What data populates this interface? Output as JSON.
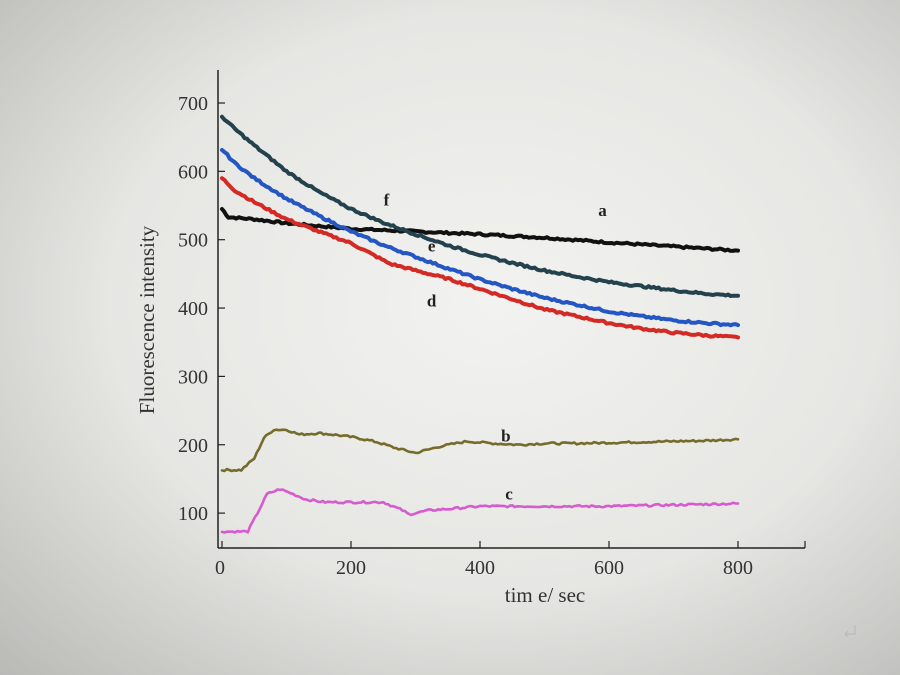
{
  "chart_data": {
    "type": "line",
    "xlabel": "tim e/ sec",
    "ylabel": "Fluorescence intensity",
    "xlim": [
      0,
      900
    ],
    "ylim": [
      50,
      750
    ],
    "x_ticks": [
      0,
      200,
      400,
      600,
      800
    ],
    "y_ticks": [
      100,
      200,
      300,
      400,
      500,
      600,
      700
    ],
    "grid": false,
    "series": [
      {
        "name": "a",
        "color": "#111111",
        "x": [
          0,
          10,
          50,
          100,
          150,
          200,
          300,
          400,
          500,
          600,
          700,
          800
        ],
        "y": [
          545,
          533,
          530,
          524,
          520,
          516,
          512,
          508,
          503,
          496,
          490,
          484
        ]
      },
      {
        "name": "b",
        "color": "#756b2a",
        "x": [
          0,
          30,
          50,
          65,
          80,
          100,
          120,
          150,
          180,
          210,
          240,
          270,
          300,
          340,
          380,
          420,
          460,
          500,
          550,
          600,
          650,
          700,
          750,
          800
        ],
        "y": [
          163,
          163,
          180,
          210,
          222,
          222,
          215,
          217,
          214,
          210,
          204,
          195,
          188,
          198,
          205,
          202,
          200,
          202,
          202,
          203,
          204,
          205,
          206,
          208
        ]
      },
      {
        "name": "c",
        "color": "#d65ad0",
        "x": [
          0,
          40,
          55,
          70,
          90,
          110,
          130,
          160,
          200,
          250,
          280,
          290,
          300,
          320,
          350,
          400,
          450,
          500,
          550,
          600,
          650,
          700,
          750,
          800
        ],
        "y": [
          73,
          73,
          100,
          128,
          135,
          128,
          120,
          116,
          116,
          116,
          104,
          98,
          100,
          104,
          106,
          110,
          110,
          110,
          110,
          110,
          111,
          112,
          113,
          114
        ]
      },
      {
        "name": "d",
        "color": "#d42a25",
        "x": [
          0,
          20,
          50,
          100,
          150,
          200,
          220,
          240,
          260,
          300,
          350,
          400,
          450,
          500,
          550,
          600,
          650,
          700,
          750,
          800
        ],
        "y": [
          590,
          572,
          555,
          530,
          512,
          495,
          485,
          475,
          465,
          455,
          443,
          428,
          413,
          398,
          388,
          378,
          370,
          364,
          360,
          357
        ]
      },
      {
        "name": "e",
        "color": "#2457c4",
        "x": [
          0,
          20,
          50,
          100,
          150,
          200,
          250,
          300,
          350,
          400,
          450,
          500,
          550,
          600,
          650,
          700,
          750,
          800
        ],
        "y": [
          632,
          612,
          590,
          560,
          535,
          512,
          492,
          475,
          458,
          442,
          428,
          415,
          405,
          395,
          388,
          382,
          378,
          375
        ]
      },
      {
        "name": "f",
        "color": "#24424e",
        "x": [
          0,
          20,
          50,
          100,
          150,
          200,
          250,
          300,
          350,
          400,
          450,
          500,
          550,
          600,
          650,
          700,
          750,
          800
        ],
        "y": [
          680,
          662,
          638,
          600,
          570,
          545,
          525,
          508,
          492,
          478,
          466,
          455,
          446,
          438,
          432,
          426,
          421,
          418
        ]
      }
    ],
    "annotations": [
      {
        "text": "a",
        "x": 590,
        "y": 535
      },
      {
        "text": "b",
        "x": 440,
        "y": 205
      },
      {
        "text": "c",
        "x": 445,
        "y": 120
      },
      {
        "text": "d",
        "x": 325,
        "y": 402
      },
      {
        "text": "e",
        "x": 325,
        "y": 483
      },
      {
        "text": "f",
        "x": 255,
        "y": 550
      }
    ]
  }
}
